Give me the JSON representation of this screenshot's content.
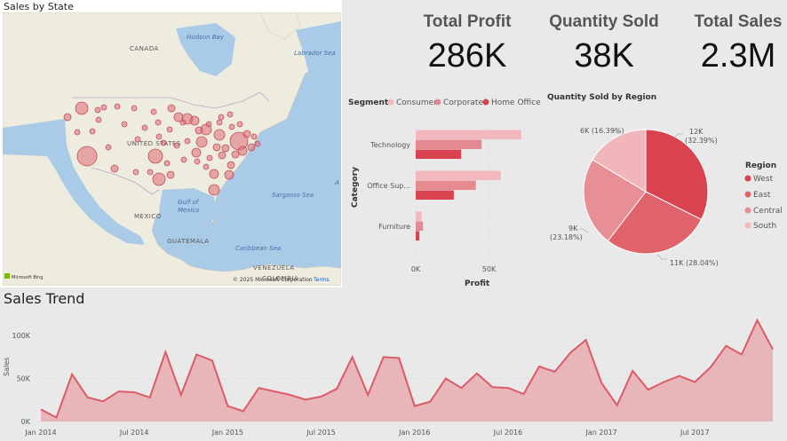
{
  "map": {
    "title": "Sales by State",
    "labels": {
      "canada": "CANADA",
      "hudson_bay": "Hudson Bay",
      "labrador_sea": "Labrador Sea",
      "united_states": "UNITED STATES",
      "gulf_of": "Gulf of",
      "mexico_water": "Mexico",
      "mexico": "MEXICO",
      "sargasso": "Sargasso Sea",
      "caribbean": "Caribbean Sea",
      "guatemala": "GUATEMALA",
      "venezuela": "VENEZUELA",
      "colombia": "COLOMBIA",
      "atlantic_a": "A"
    },
    "bing": "Microsoft Bing",
    "copyright": "© 2025 Microsoft Corporation",
    "terms": "Terms",
    "bubble_color": "#e06c75"
  },
  "kpis": [
    {
      "label": "Total Profit",
      "value": "286K"
    },
    {
      "label": "Quantity Sold",
      "value": "38K"
    },
    {
      "label": "Total Sales",
      "value": "2.3M"
    }
  ],
  "bar_chart": {
    "legend_title": "Segment",
    "y_title": "Category",
    "x_title": "Profit",
    "x_ticks": [
      "0K",
      "50K"
    ],
    "colors": {
      "Consumer": "#f2b8bd",
      "Corporate": "#e68a92",
      "Home Office": "#d9434f"
    }
  },
  "pie_chart": {
    "title": "Quantity Sold by Region",
    "legend_title": "Region",
    "labels": {
      "West": [
        "12K",
        "(32.39%)"
      ],
      "East": [
        "11K (28.04%)"
      ],
      "Central": [
        "9K",
        "(23.18%)"
      ],
      "South": [
        "6K (16.39%)"
      ]
    }
  },
  "trend": {
    "title": "Sales Trend",
    "y_title": "Sales",
    "fill": "#e8b5b9",
    "stroke": "#dc5b66"
  },
  "chart_data": [
    {
      "type": "bar",
      "orientation": "horizontal",
      "categories": [
        "Technology",
        "Office Sup...",
        "Furniture"
      ],
      "series": [
        {
          "name": "Consumer",
          "values": [
            72000,
            58000,
            4000
          ]
        },
        {
          "name": "Corporate",
          "values": [
            45000,
            41000,
            5000
          ]
        },
        {
          "name": "Home Office",
          "values": [
            31000,
            26000,
            2500
          ]
        }
      ],
      "xlim": [
        0,
        80000
      ],
      "xlabel": "Profit",
      "ylabel": "Category"
    },
    {
      "type": "pie",
      "title": "Quantity Sold by Region",
      "slices": [
        {
          "name": "West",
          "value": 12000,
          "percent": 32.39,
          "color": "#d9434f"
        },
        {
          "name": "East",
          "value": 11000,
          "percent": 28.04,
          "color": "#e0636c"
        },
        {
          "name": "Central",
          "value": 9000,
          "percent": 23.18,
          "color": "#e88e95"
        },
        {
          "name": "South",
          "value": 6000,
          "percent": 16.39,
          "color": "#f0b6ba"
        }
      ]
    },
    {
      "type": "area",
      "title": "Sales Trend",
      "ylabel": "Sales",
      "ylim": [
        0,
        125000
      ],
      "y_ticks": [
        "0K",
        "50K",
        "100K"
      ],
      "x_ticks": [
        "Jan 2014",
        "Jul 2014",
        "Jan 2015",
        "Jul 2015",
        "Jan 2016",
        "Jul 2016",
        "Jan 2017",
        "Jul 2017"
      ],
      "x_start": "2014-01",
      "values": [
        14000,
        4500,
        55000,
        28000,
        23500,
        35000,
        34000,
        28000,
        81000,
        31000,
        78000,
        71000,
        18000,
        12000,
        39000,
        35000,
        31000,
        25500,
        29000,
        38000,
        75000,
        31000,
        75000,
        74000,
        18000,
        23000,
        50000,
        39000,
        56000,
        40000,
        39000,
        32000,
        64000,
        58000,
        80000,
        95000,
        45000,
        19000,
        59000,
        37000,
        46000,
        53000,
        46000,
        63000,
        88000,
        78000,
        118000,
        84000
      ]
    }
  ]
}
